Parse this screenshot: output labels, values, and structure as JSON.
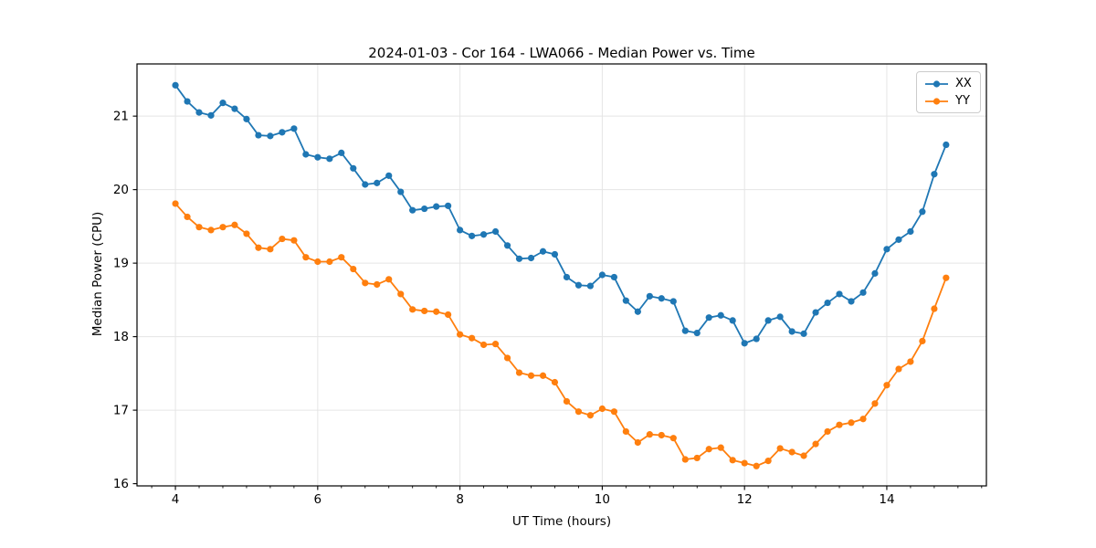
{
  "chart_data": {
    "type": "line",
    "title": "2024-01-03 - Cor 164 - LWA066 - Median Power vs. Time",
    "xlabel": "UT Time (hours)",
    "ylabel": "Median Power (CPU)",
    "xlim": [
      3.46,
      15.4
    ],
    "ylim": [
      15.97,
      21.71
    ],
    "xticks": [
      4,
      6,
      8,
      10,
      12,
      14
    ],
    "yticks": [
      16,
      17,
      18,
      19,
      20,
      21
    ],
    "x_minor_tick_step": 0.33333,
    "grid": true,
    "grid_color": "#e5e5e5",
    "legend": {
      "position": "upper right"
    },
    "x": [
      4.0,
      4.167,
      4.333,
      4.5,
      4.667,
      4.833,
      5.0,
      5.167,
      5.333,
      5.5,
      5.667,
      5.833,
      6.0,
      6.167,
      6.333,
      6.5,
      6.667,
      6.833,
      7.0,
      7.167,
      7.333,
      7.5,
      7.667,
      7.833,
      8.0,
      8.167,
      8.333,
      8.5,
      8.667,
      8.833,
      9.0,
      9.167,
      9.333,
      9.5,
      9.667,
      9.833,
      10.0,
      10.167,
      10.333,
      10.5,
      10.667,
      10.833,
      11.0,
      11.167,
      11.333,
      11.5,
      11.667,
      11.833,
      12.0,
      12.167,
      12.333,
      12.5,
      12.667,
      12.833,
      13.0,
      13.167,
      13.333,
      13.5,
      13.667,
      13.833,
      14.0,
      14.167,
      14.333,
      14.5,
      14.667,
      14.833
    ],
    "series": [
      {
        "name": "XX",
        "color": "#1f77b4",
        "marker": "circle",
        "values": [
          21.42,
          21.2,
          21.05,
          21.01,
          21.18,
          21.1,
          20.96,
          20.74,
          20.73,
          20.78,
          20.83,
          20.48,
          20.44,
          20.42,
          20.5,
          20.29,
          20.07,
          20.09,
          20.19,
          19.97,
          19.72,
          19.74,
          19.77,
          19.78,
          19.45,
          19.37,
          19.39,
          19.43,
          19.24,
          19.06,
          19.07,
          19.16,
          19.12,
          18.81,
          18.7,
          18.69,
          18.84,
          18.81,
          18.49,
          18.34,
          18.55,
          18.52,
          18.48,
          18.08,
          18.05,
          18.26,
          18.29,
          18.22,
          17.91,
          17.97,
          18.22,
          18.27,
          18.07,
          18.04,
          18.33,
          18.46,
          18.58,
          18.48,
          18.6,
          18.86,
          19.19,
          19.32,
          19.43,
          19.7,
          20.21,
          20.61
        ]
      },
      {
        "name": "YY",
        "color": "#ff7f0e",
        "marker": "circle",
        "values": [
          19.81,
          19.63,
          19.49,
          19.45,
          19.49,
          19.52,
          19.4,
          19.21,
          19.19,
          19.33,
          19.31,
          19.08,
          19.02,
          19.02,
          19.08,
          18.92,
          18.73,
          18.71,
          18.78,
          18.58,
          18.37,
          18.35,
          18.34,
          18.3,
          18.03,
          17.98,
          17.89,
          17.9,
          17.71,
          17.51,
          17.47,
          17.47,
          17.38,
          17.12,
          16.98,
          16.93,
          17.02,
          16.98,
          16.71,
          16.56,
          16.67,
          16.66,
          16.62,
          16.33,
          16.35,
          16.47,
          16.49,
          16.32,
          16.28,
          16.24,
          16.31,
          16.48,
          16.43,
          16.38,
          16.54,
          16.71,
          16.8,
          16.83,
          16.88,
          17.09,
          17.34,
          17.56,
          17.66,
          17.94,
          18.38,
          18.8
        ]
      }
    ]
  }
}
